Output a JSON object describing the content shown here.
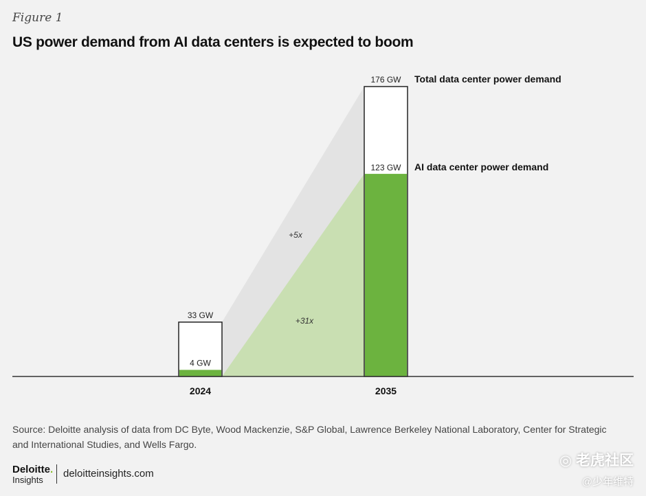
{
  "figure_label": "Figure 1",
  "title": "US power demand from AI data centers is expected to boom",
  "chart_data": {
    "type": "bar",
    "categories": [
      "2024",
      "2035"
    ],
    "series": [
      {
        "name": "Total data center power demand",
        "values": [
          33,
          176
        ],
        "value_labels": [
          "33 GW",
          "176 GW"
        ]
      },
      {
        "name": "AI data center power demand",
        "values": [
          4,
          123
        ],
        "value_labels": [
          "4 GW",
          "123 GW"
        ]
      }
    ],
    "annotations": [
      "+5x",
      "+31x"
    ],
    "ylim": [
      0,
      176
    ],
    "colors": {
      "ai": "#6cb33f",
      "total_fill": "#ffffff",
      "total_stroke": "#222222",
      "ai_wedge": "#c9dfb2",
      "total_wedge": "#e3e3e3"
    }
  },
  "source": "Source: Deloitte analysis of data from DC Byte, Wood Mackenzie, S&P Global, Lawrence Berkeley National Laboratory, Center for Strategic and International Studies, and Wells Fargo.",
  "footer": {
    "brand_name": "Deloitte",
    "brand_dot": ".",
    "brand_sub": "Insights",
    "url": "deloitteinsights.com"
  },
  "watermark": {
    "main": "◎ 老虎社区",
    "sub": "@少年维特"
  }
}
